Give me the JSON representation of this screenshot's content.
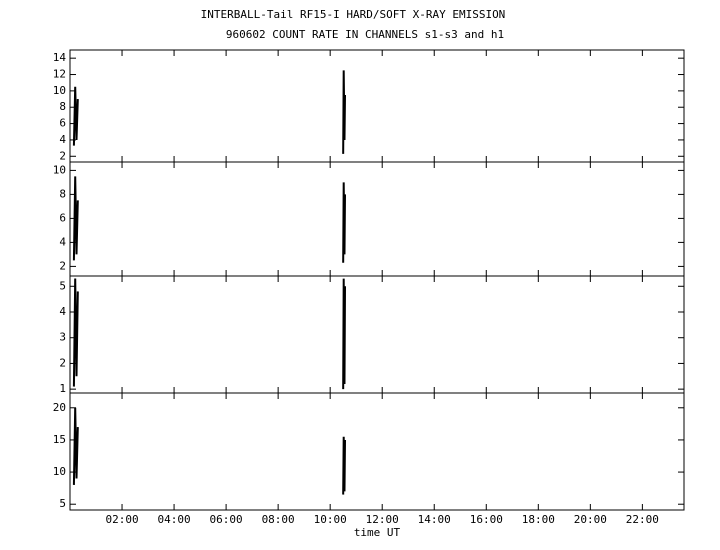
{
  "header": {
    "title": "INTERBALL-Tail RF15-I HARD/SOFT X-RAY EMISSION",
    "subtitle": "960602  COUNT RATE IN CHANNELS s1-s3 and h1"
  },
  "chart_data": [
    {
      "type": "line",
      "color": "#000000",
      "x": [
        0.15,
        0.2,
        0.25,
        0.3,
        5,
        10.5,
        10.52,
        10.55,
        10.57
      ],
      "values": [
        3.3,
        10.5,
        4,
        9,
        null,
        2.3,
        12.5,
        4,
        9.5
      ],
      "ylim": [
        1.3,
        15
      ],
      "yticks": [
        2,
        4,
        6,
        8,
        10,
        12,
        14
      ]
    },
    {
      "type": "line",
      "color": "#000000",
      "x": [
        0.15,
        0.2,
        0.25,
        0.3,
        5,
        10.5,
        10.52,
        10.55,
        10.57
      ],
      "values": [
        2.5,
        9.5,
        3,
        7.5,
        null,
        2.3,
        9,
        3,
        8
      ],
      "ylim": [
        1.2,
        10.7
      ],
      "yticks": [
        2,
        4,
        6,
        8,
        10
      ]
    },
    {
      "type": "line",
      "color": "#000000",
      "x": [
        0.15,
        0.2,
        0.25,
        0.3,
        5,
        10.5,
        10.52,
        10.55,
        10.57
      ],
      "values": [
        1.1,
        5.3,
        1.5,
        4.8,
        null,
        1,
        5.3,
        1.2,
        5
      ],
      "ylim": [
        0.85,
        5.4
      ],
      "yticks": [
        1,
        2,
        3,
        4,
        5
      ]
    },
    {
      "type": "line",
      "color": "#000000",
      "x": [
        0.15,
        0.2,
        0.25,
        0.3,
        5,
        10.5,
        10.52,
        10.55,
        10.57
      ],
      "values": [
        8,
        20,
        9,
        17,
        null,
        6.5,
        15.5,
        7,
        15
      ],
      "ylim": [
        4.1,
        22.3
      ],
      "yticks": [
        5,
        10,
        15,
        20
      ],
      "xlim": [
        0,
        23.6
      ],
      "x_label": "time UT",
      "xticks": [
        {
          "value": 2,
          "label": "02:00"
        },
        {
          "value": 4,
          "label": "04:00"
        },
        {
          "value": 6,
          "label": "06:00"
        },
        {
          "value": 8,
          "label": "08:00"
        },
        {
          "value": 10,
          "label": "10:00"
        },
        {
          "value": 12,
          "label": "12:00"
        },
        {
          "value": 14,
          "label": "14:00"
        },
        {
          "value": 16,
          "label": "16:00"
        },
        {
          "value": 18,
          "label": "18:00"
        },
        {
          "value": 20,
          "label": "20:00"
        },
        {
          "value": 22,
          "label": "22:00"
        }
      ]
    }
  ]
}
